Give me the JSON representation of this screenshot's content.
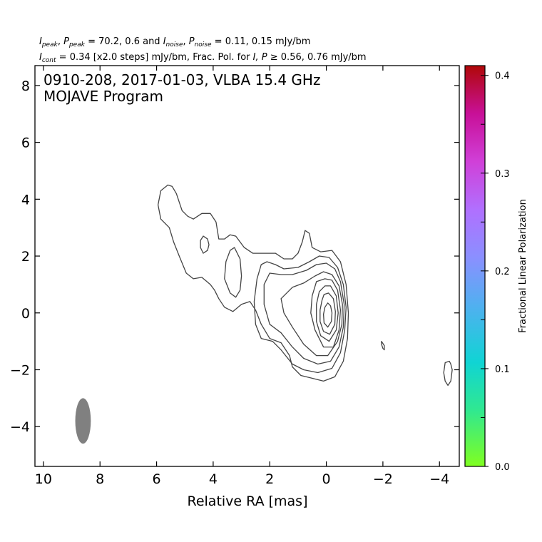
{
  "chart_data": {
    "type": "contour",
    "header_line1": {
      "i_peak_label": "I",
      "i_peak_sub": "peak",
      "p_peak_label": "P",
      "p_peak_sub": "peak",
      "peak_values": "= 70.2, 0.6 and",
      "i_noise_label": "I",
      "i_noise_sub": "noise",
      "p_noise_label": "P",
      "p_noise_sub": "noise",
      "noise_values": "= 0.11, 0.15 mJy/bm"
    },
    "header_line2": {
      "i_cont_label": "I",
      "i_cont_sub": "cont",
      "cont_text": "= 0.34 [x2.0 steps] mJy/bm, Frac. Pol. for",
      "ip_label": "I, P",
      "ge_text": "≥ 0.56, 0.76 mJy/bm"
    },
    "title_line1": "0910-208, 2017-01-03, VLBA 15.4 GHz",
    "title_line2": "MOJAVE Program",
    "xlabel": "Relative RA [mas]",
    "xlim": [
      10.3,
      -4.7
    ],
    "ylim": [
      -5.4,
      8.7
    ],
    "x_ticks": [
      {
        "value": 10,
        "label": "10"
      },
      {
        "value": 8,
        "label": "8"
      },
      {
        "value": 6,
        "label": "6"
      },
      {
        "value": 4,
        "label": "4"
      },
      {
        "value": 2,
        "label": "2"
      },
      {
        "value": 0,
        "label": "0"
      },
      {
        "value": -2,
        "label": "−2"
      },
      {
        "value": -4,
        "label": "−4"
      }
    ],
    "y_ticks": [
      {
        "value": 8,
        "label": "8"
      },
      {
        "value": 6,
        "label": "6"
      },
      {
        "value": 4,
        "label": "4"
      },
      {
        "value": 2,
        "label": "2"
      },
      {
        "value": 0,
        "label": "0"
      },
      {
        "value": -2,
        "label": "−2"
      },
      {
        "value": -4,
        "label": "−4"
      }
    ],
    "colorbar": {
      "label": "Fractional Linear Polarization",
      "range": [
        0.0,
        0.41
      ],
      "ticks": [
        {
          "value": 0.0,
          "label": "0.0"
        },
        {
          "value": 0.1,
          "label": "0.1"
        },
        {
          "value": 0.2,
          "label": "0.2"
        },
        {
          "value": 0.3,
          "label": "0.3"
        },
        {
          "value": 0.4,
          "label": "0.4"
        }
      ],
      "colors": [
        "#80ff20",
        "#30e890",
        "#10d4d4",
        "#50b0f0",
        "#8a90ff",
        "#b070ff",
        "#d040d8",
        "#c81098",
        "#b00808"
      ]
    },
    "contour_color": "#444444",
    "beam": {
      "x": 8.6,
      "y": -3.8,
      "width_mas": 0.55,
      "height_mas": 1.6,
      "color": "#808080"
    },
    "contours": [
      [
        [
          5.6,
          4.5
        ],
        [
          5.85,
          4.3
        ],
        [
          5.95,
          3.8
        ],
        [
          5.85,
          3.3
        ],
        [
          5.55,
          3.0
        ],
        [
          5.4,
          2.5
        ],
        [
          5.2,
          2.0
        ],
        [
          4.95,
          1.4
        ],
        [
          4.7,
          1.2
        ],
        [
          4.4,
          1.25
        ],
        [
          4.1,
          1.0
        ],
        [
          3.95,
          0.8
        ],
        [
          3.8,
          0.5
        ],
        [
          3.6,
          0.2
        ],
        [
          3.3,
          0.05
        ],
        [
          3.0,
          0.3
        ],
        [
          2.7,
          0.4
        ],
        [
          2.5,
          0.1
        ],
        [
          2.3,
          -0.4
        ],
        [
          2.0,
          -0.9
        ],
        [
          1.6,
          -1.05
        ],
        [
          1.3,
          -1.5
        ],
        [
          1.2,
          -1.9
        ],
        [
          0.9,
          -2.2
        ],
        [
          0.5,
          -2.3
        ],
        [
          0.1,
          -2.4
        ],
        [
          -0.3,
          -2.25
        ],
        [
          -0.6,
          -1.7
        ],
        [
          -0.75,
          -0.9
        ],
        [
          -0.78,
          0.0
        ],
        [
          -0.7,
          1.0
        ],
        [
          -0.5,
          1.8
        ],
        [
          -0.2,
          2.2
        ],
        [
          0.2,
          2.15
        ],
        [
          0.5,
          2.3
        ],
        [
          0.6,
          2.8
        ],
        [
          0.75,
          2.9
        ],
        [
          0.85,
          2.5
        ],
        [
          1.0,
          2.1
        ],
        [
          1.2,
          1.9
        ],
        [
          1.5,
          1.9
        ],
        [
          1.8,
          2.1
        ],
        [
          2.2,
          2.1
        ],
        [
          2.6,
          2.1
        ],
        [
          2.9,
          2.3
        ],
        [
          3.2,
          2.7
        ],
        [
          3.4,
          2.75
        ],
        [
          3.6,
          2.6
        ],
        [
          3.8,
          2.6
        ],
        [
          3.9,
          3.2
        ],
        [
          4.1,
          3.5
        ],
        [
          4.4,
          3.5
        ],
        [
          4.7,
          3.3
        ],
        [
          4.9,
          3.4
        ],
        [
          5.1,
          3.6
        ],
        [
          5.3,
          4.2
        ],
        [
          5.45,
          4.45
        ],
        [
          5.6,
          4.5
        ]
      ],
      [
        [
          4.35,
          2.7
        ],
        [
          4.45,
          2.55
        ],
        [
          4.45,
          2.3
        ],
        [
          4.35,
          2.1
        ],
        [
          4.2,
          2.2
        ],
        [
          4.15,
          2.4
        ],
        [
          4.2,
          2.6
        ],
        [
          4.35,
          2.7
        ]
      ],
      [
        [
          3.25,
          2.3
        ],
        [
          3.05,
          1.9
        ],
        [
          3.0,
          1.3
        ],
        [
          3.05,
          0.8
        ],
        [
          3.2,
          0.55
        ],
        [
          3.4,
          0.7
        ],
        [
          3.6,
          1.2
        ],
        [
          3.55,
          1.8
        ],
        [
          3.4,
          2.2
        ],
        [
          3.25,
          2.3
        ]
      ],
      [
        [
          2.1,
          1.8
        ],
        [
          2.3,
          1.7
        ],
        [
          2.45,
          1.2
        ],
        [
          2.55,
          0.4
        ],
        [
          2.5,
          -0.4
        ],
        [
          2.3,
          -0.9
        ],
        [
          1.9,
          -1.0
        ],
        [
          1.6,
          -1.3
        ],
        [
          1.2,
          -1.8
        ],
        [
          0.8,
          -2.0
        ],
        [
          0.3,
          -2.1
        ],
        [
          -0.2,
          -1.95
        ],
        [
          -0.5,
          -1.4
        ],
        [
          -0.65,
          -0.6
        ],
        [
          -0.7,
          0.2
        ],
        [
          -0.6,
          1.0
        ],
        [
          -0.4,
          1.6
        ],
        [
          -0.1,
          1.95
        ],
        [
          0.25,
          2.0
        ],
        [
          0.6,
          1.8
        ],
        [
          1.0,
          1.6
        ],
        [
          1.5,
          1.55
        ],
        [
          1.8,
          1.7
        ],
        [
          2.1,
          1.8
        ]
      ],
      [
        [
          2.0,
          1.4
        ],
        [
          2.2,
          1.0
        ],
        [
          2.2,
          0.3
        ],
        [
          2.0,
          -0.4
        ],
        [
          1.6,
          -0.7
        ],
        [
          1.2,
          -1.2
        ],
        [
          0.8,
          -1.6
        ],
        [
          0.3,
          -1.8
        ],
        [
          -0.15,
          -1.7
        ],
        [
          -0.45,
          -1.2
        ],
        [
          -0.6,
          -0.5
        ],
        [
          -0.63,
          0.3
        ],
        [
          -0.5,
          1.1
        ],
        [
          -0.3,
          1.55
        ],
        [
          0.0,
          1.75
        ],
        [
          0.35,
          1.7
        ],
        [
          0.7,
          1.5
        ],
        [
          1.2,
          1.35
        ],
        [
          1.6,
          1.35
        ],
        [
          2.0,
          1.4
        ]
      ],
      [
        [
          1.2,
          0.9
        ],
        [
          1.6,
          0.5
        ],
        [
          1.5,
          0.0
        ],
        [
          1.2,
          -0.5
        ],
        [
          0.8,
          -1.1
        ],
        [
          0.35,
          -1.5
        ],
        [
          -0.05,
          -1.5
        ],
        [
          -0.4,
          -1.0
        ],
        [
          -0.55,
          -0.4
        ],
        [
          -0.57,
          0.3
        ],
        [
          -0.45,
          0.95
        ],
        [
          -0.2,
          1.35
        ],
        [
          0.1,
          1.45
        ],
        [
          0.4,
          1.3
        ],
        [
          0.8,
          1.05
        ],
        [
          1.2,
          0.9
        ]
      ],
      [
        [
          0.35,
          1.1
        ],
        [
          0.5,
          0.6
        ],
        [
          0.55,
          0.0
        ],
        [
          0.4,
          -0.6
        ],
        [
          0.1,
          -1.2
        ],
        [
          -0.25,
          -1.2
        ],
        [
          -0.45,
          -0.6
        ],
        [
          -0.5,
          0.1
        ],
        [
          -0.4,
          0.8
        ],
        [
          -0.2,
          1.15
        ],
        [
          0.05,
          1.2
        ],
        [
          0.35,
          1.1
        ]
      ],
      [
        [
          0.25,
          0.75
        ],
        [
          0.35,
          0.3
        ],
        [
          0.35,
          -0.3
        ],
        [
          0.2,
          -0.8
        ],
        [
          -0.1,
          -1.0
        ],
        [
          -0.35,
          -0.6
        ],
        [
          -0.42,
          0.0
        ],
        [
          -0.35,
          0.6
        ],
        [
          -0.15,
          0.95
        ],
        [
          0.05,
          0.95
        ],
        [
          0.25,
          0.75
        ]
      ],
      [
        [
          0.15,
          0.45
        ],
        [
          0.22,
          0.1
        ],
        [
          0.22,
          -0.3
        ],
        [
          0.1,
          -0.65
        ],
        [
          -0.12,
          -0.75
        ],
        [
          -0.3,
          -0.4
        ],
        [
          -0.32,
          0.05
        ],
        [
          -0.25,
          0.5
        ],
        [
          -0.08,
          0.7
        ],
        [
          0.08,
          0.65
        ],
        [
          0.15,
          0.45
        ]
      ],
      [
        [
          0.05,
          0.2
        ],
        [
          0.1,
          -0.05
        ],
        [
          0.08,
          -0.35
        ],
        [
          -0.05,
          -0.5
        ],
        [
          -0.18,
          -0.3
        ],
        [
          -0.2,
          0.0
        ],
        [
          -0.15,
          0.25
        ],
        [
          -0.05,
          0.35
        ],
        [
          0.05,
          0.2
        ]
      ],
      [
        [
          -1.95,
          -1.0
        ],
        [
          -2.05,
          -1.15
        ],
        [
          -2.05,
          -1.3
        ],
        [
          -2.0,
          -1.25
        ],
        [
          -1.95,
          -1.1
        ],
        [
          -1.95,
          -1.0
        ]
      ],
      [
        [
          -4.35,
          -1.7
        ],
        [
          -4.2,
          -1.75
        ],
        [
          -4.15,
          -2.1
        ],
        [
          -4.2,
          -2.4
        ],
        [
          -4.3,
          -2.55
        ],
        [
          -4.4,
          -2.4
        ],
        [
          -4.45,
          -2.0
        ],
        [
          -4.4,
          -1.8
        ],
        [
          -4.35,
          -1.7
        ]
      ]
    ]
  }
}
